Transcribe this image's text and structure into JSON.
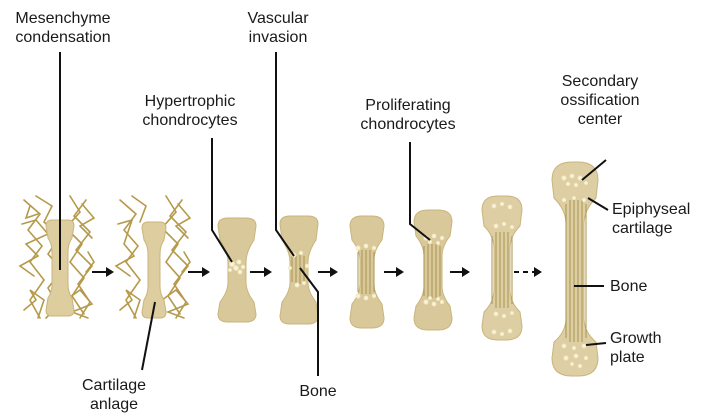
{
  "labels": {
    "mesenchyme": [
      "Mesenchyme",
      "condensation"
    ],
    "cartilage_anlage": [
      "Cartilage",
      "anlage"
    ],
    "hypertrophic": [
      "Hypertrophic",
      "chondrocytes"
    ],
    "vascular": [
      "Vascular",
      "invasion"
    ],
    "bone_bottom": "Bone",
    "proliferating": [
      "Proliferating",
      "chondrocytes"
    ],
    "secondary": [
      "Secondary",
      "ossification",
      "center"
    ],
    "epiphyseal": [
      "Epiphyseal",
      "cartilage"
    ],
    "bone_right": "Bone",
    "growth_plate": [
      "Growth",
      "plate"
    ]
  },
  "colors": {
    "cartilage": "#d9c99a",
    "cartilage_edge": "#c9b47c",
    "fiber": "#b59a4a",
    "bone_fiber": "#a8934f",
    "arrow": "#111111"
  }
}
